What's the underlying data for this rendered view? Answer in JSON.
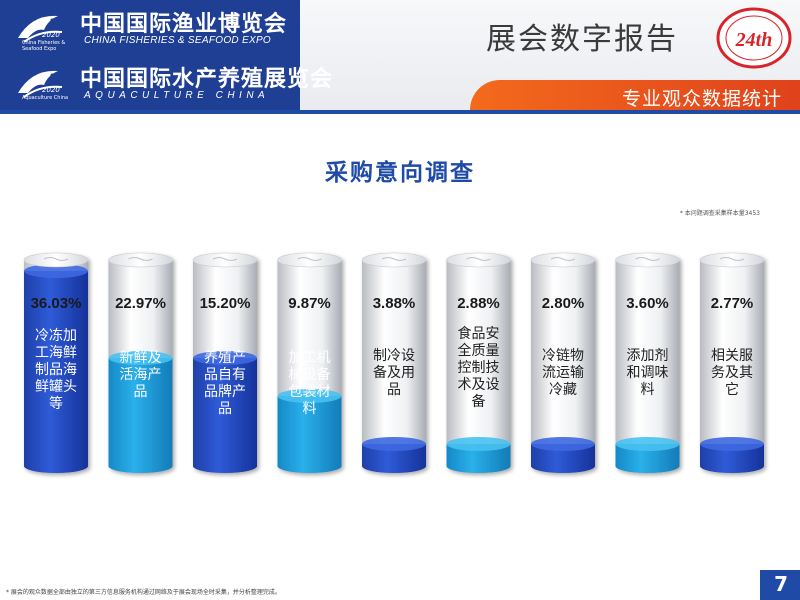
{
  "header": {
    "logo1_cn": "中国国际渔业博览会",
    "logo1_en": "CHINA FISHERIES & SEAFOOD EXPO",
    "logo1_year": "2020",
    "logo1_small": "China Fisheries & Seafood Expo",
    "logo2_cn": "中国国际水产养殖展览会",
    "logo2_en": "AQUACULTURE CHINA",
    "logo2_year": "2020",
    "logo2_small": "Aquaculture China",
    "report_title": "展会数字报告",
    "badge_text": "24th",
    "subtitle": "专业观众数据统计",
    "colors": {
      "primary": "#1f3f95",
      "accent": "#f36a1c"
    }
  },
  "chart_data": {
    "type": "bar",
    "title": "采购意向调查",
    "note": "* 本问题调查采集样本量3453",
    "unit": "%",
    "categories": [
      "冷冻加工海鲜制品/海鲜罐头等",
      "新鲜及活海产品",
      "养殖产品自有品牌产品",
      "加工机械设备包装材料",
      "制冷设备及用品",
      "食品安全质量控制技术及设备",
      "冷链物流运输冷藏",
      "添加剂和调味料",
      "相关服务及其它"
    ],
    "labels": [
      "冷冻加工海鲜制品海鲜罐头等",
      "新鲜及活海产品",
      "养殖产品自有品牌产品",
      "加工机械设备包装材料",
      "制冷设备及用品",
      "食品安全质量控制技术及设备",
      "冷链物流运输冷藏",
      "添加剂和调味料",
      "相关服务及其它"
    ],
    "values": [
      36.03,
      22.97,
      15.2,
      9.87,
      3.88,
      2.88,
      2.8,
      3.6,
      2.77
    ],
    "value_labels": [
      "36.03%",
      "22.97%",
      "15.20%",
      "9.87%",
      "3.88%",
      "2.88%",
      "2.80%",
      "3.60%",
      "2.77%"
    ]
  },
  "footer": {
    "note": "* 展会的观众数据全部由独立的第三方信息服务机构通过网络及于展会现场全时采集，并分析整理完成。",
    "page_number": "7"
  }
}
